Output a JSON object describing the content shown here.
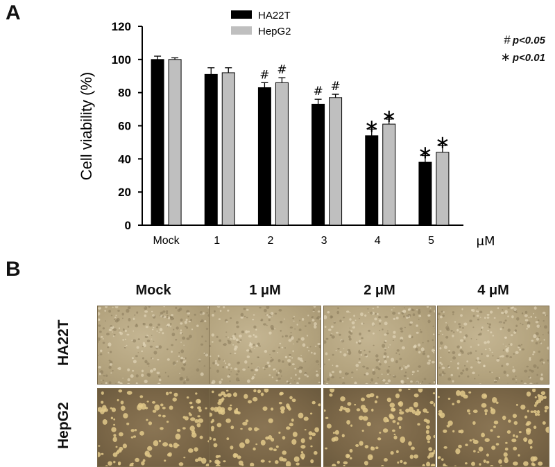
{
  "panel_a_label": "A",
  "panel_b_label": "B",
  "significance": [
    {
      "symbol": "#",
      "text": "p<0.05"
    },
    {
      "symbol": "∗",
      "text": "p<0.01"
    }
  ],
  "chart_data": {
    "type": "bar",
    "categories": [
      "Mock",
      "1",
      "2",
      "3",
      "4",
      "5"
    ],
    "x_unit_label": "μM",
    "ylabel": "Cell viability (%)",
    "ylim": [
      0,
      120
    ],
    "yticks": [
      0,
      20,
      40,
      60,
      80,
      100,
      120
    ],
    "series": [
      {
        "name": "HA22T",
        "color": "#000000",
        "values": [
          100,
          91,
          83,
          73,
          54,
          38
        ],
        "errors": [
          2,
          4,
          3,
          3,
          4,
          4
        ],
        "marks": [
          "",
          "",
          "#",
          "#",
          "*",
          "*"
        ]
      },
      {
        "name": "HepG2",
        "color": "#bfbfbf",
        "values": [
          100,
          92,
          86,
          77,
          61,
          44
        ],
        "errors": [
          1,
          3,
          3,
          2,
          3,
          4
        ],
        "marks": [
          "",
          "",
          "#",
          "#",
          "*",
          "*"
        ]
      }
    ],
    "legend_position": "top-center"
  },
  "panel_b": {
    "columns": [
      "Mock",
      "1 μM",
      "2 μM",
      "4 μM"
    ],
    "rows": [
      "HA22T",
      "HepG2"
    ]
  }
}
